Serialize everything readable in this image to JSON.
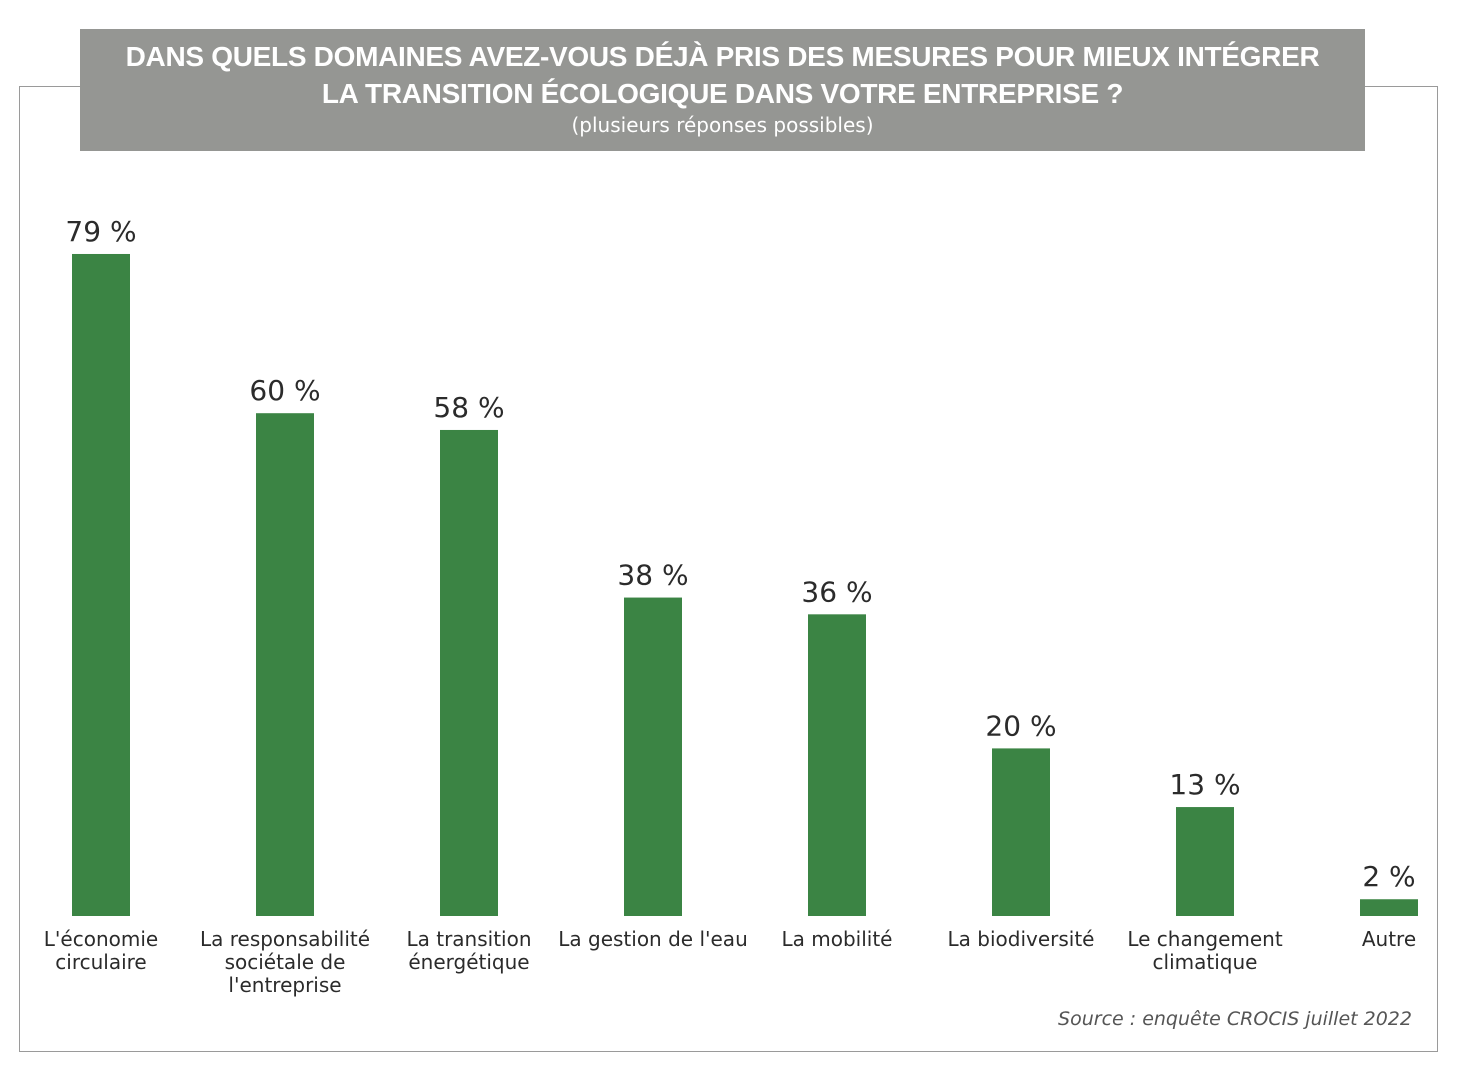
{
  "chart_data": {
    "type": "bar",
    "title": "DANS QUELS DOMAINES AVEZ-VOUS DÉJÀ PRIS DES MESURES POUR MIEUX INTÉGRER LA TRANSITION ÉCOLOGIQUE DANS VOTRE ENTREPRISE ?",
    "title_lines": [
      "DANS QUELS DOMAINES AVEZ-VOUS DÉJÀ PRIS DES MESURES POUR MIEUX INTÉGRER",
      "LA TRANSITION ÉCOLOGIQUE DANS VOTRE ENTREPRISE ?"
    ],
    "subtitle": "(plusieurs réponses possibles)",
    "categories": [
      "L'économie circulaire",
      "La responsabilité sociétale de l'entreprise",
      "La transition énergétique",
      "La gestion de l'eau",
      "La mobilité",
      "La biodiversité",
      "Le changement climatique",
      "Autre"
    ],
    "category_lines": [
      [
        "L'économie",
        "circulaire"
      ],
      [
        "La responsabilité",
        "sociétale de",
        "l'entreprise"
      ],
      [
        "La transition",
        "énergétique"
      ],
      [
        "La gestion de l'eau"
      ],
      [
        "La mobilité"
      ],
      [
        "La biodiversité"
      ],
      [
        "Le changement",
        "climatique"
      ],
      [
        "Autre"
      ]
    ],
    "values": [
      79,
      60,
      58,
      38,
      36,
      20,
      13,
      2
    ],
    "value_labels": [
      "79 %",
      "60 %",
      "58 %",
      "38 %",
      "36 %",
      "20 %",
      "13 %",
      "2 %"
    ],
    "unit": "%",
    "ylim": [
      0,
      100
    ],
    "grid": false,
    "legend": "none",
    "bar_color": "#3b8444",
    "header_color": "#959693"
  },
  "source": "Source : enquête CROCIS juillet 2022"
}
